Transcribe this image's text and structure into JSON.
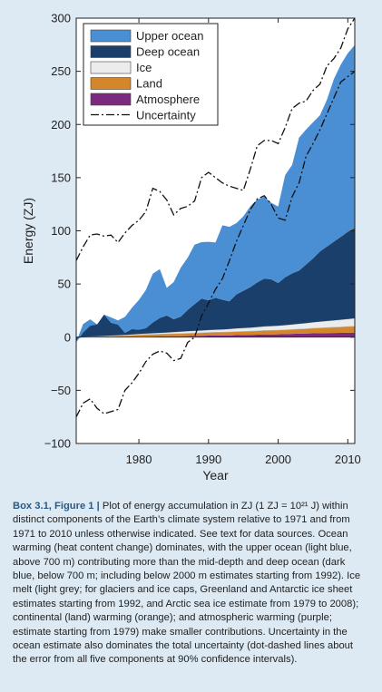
{
  "chart_data": {
    "type": "area",
    "xlabel": "Year",
    "ylabel": "Energy (ZJ)",
    "xlim": [
      1971,
      2011
    ],
    "ylim": [
      -100,
      300
    ],
    "x_ticks": [
      1980,
      1990,
      2000,
      2010
    ],
    "y_ticks": [
      -100,
      -50,
      0,
      50,
      100,
      150,
      200,
      250,
      300
    ],
    "grid": false,
    "legend_position": "top-left",
    "stacked": true,
    "x": [
      1971,
      1972,
      1973,
      1974,
      1975,
      1976,
      1977,
      1978,
      1979,
      1980,
      1981,
      1982,
      1983,
      1984,
      1985,
      1986,
      1987,
      1988,
      1989,
      1990,
      1991,
      1992,
      1993,
      1994,
      1995,
      1996,
      1997,
      1998,
      1999,
      2000,
      2001,
      2002,
      2003,
      2004,
      2005,
      2006,
      2007,
      2008,
      2009,
      2010,
      2011
    ],
    "series": [
      {
        "name": "Atmosphere",
        "color": "#7b2a7d",
        "values": [
          0,
          0,
          0,
          0,
          0,
          0,
          0,
          0,
          0.2,
          0.3,
          0.4,
          0.5,
          0.6,
          0.7,
          0.8,
          0.9,
          1.0,
          1.2,
          1.3,
          1.5,
          1.6,
          1.6,
          1.7,
          1.9,
          2.0,
          2.1,
          2.3,
          2.6,
          2.6,
          2.7,
          2.9,
          3.1,
          3.3,
          3.4,
          3.6,
          3.7,
          3.8,
          3.9,
          4.0,
          4.2,
          4.3
        ]
      },
      {
        "name": "Land",
        "color": "#d4862a",
        "values": [
          0,
          0.2,
          0.4,
          0.6,
          0.8,
          1.0,
          1.2,
          1.4,
          1.6,
          1.8,
          2.0,
          2.1,
          2.2,
          2.3,
          2.4,
          2.5,
          2.6,
          2.7,
          2.8,
          2.9,
          3.0,
          3.1,
          3.2,
          3.3,
          3.4,
          3.5,
          3.6,
          3.7,
          3.8,
          3.9,
          4.0,
          4.1,
          4.3,
          4.5,
          4.8,
          5.0,
          5.2,
          5.4,
          5.6,
          5.8,
          6.0
        ]
      },
      {
        "name": "Ice",
        "color": "#ececec",
        "values": [
          0,
          0.1,
          0.2,
          0.3,
          0.4,
          0.5,
          0.6,
          0.7,
          0.8,
          0.9,
          1.0,
          1.1,
          1.2,
          1.4,
          1.6,
          1.8,
          2.0,
          2.1,
          2.2,
          2.3,
          2.4,
          2.5,
          2.8,
          3.0,
          3.2,
          3.4,
          3.6,
          3.8,
          4.0,
          4.2,
          4.4,
          4.7,
          5.0,
          5.3,
          5.6,
          5.9,
          6.2,
          6.5,
          6.8,
          7.1,
          7.4
        ]
      },
      {
        "name": "Deep ocean",
        "color": "#1b3f6b",
        "values": [
          -5,
          12,
          16,
          11,
          20,
          12,
          10,
          2,
          5,
          4,
          5,
          10,
          14,
          16,
          12,
          14,
          20,
          25,
          30,
          28,
          30,
          28,
          26,
          32,
          35,
          38,
          42,
          45,
          44,
          40,
          45,
          48,
          50,
          55,
          60,
          66,
          70,
          74,
          78,
          82,
          85
        ]
      },
      {
        "name": "Upper ocean",
        "color": "#4a8fd4",
        "values": [
          0,
          -8,
          -6,
          0,
          0,
          5,
          4,
          15,
          20,
          28,
          36,
          46,
          46,
          26,
          35,
          46,
          49,
          56,
          53,
          55,
          52,
          70,
          70,
          67,
          70,
          76,
          78,
          77,
          72,
          72,
          96,
          102,
          125,
          127,
          128,
          128,
          138,
          153,
          162,
          168,
          172
        ]
      }
    ],
    "uncertainty": {
      "name": "Uncertainty",
      "upper": [
        72,
        85,
        96,
        97,
        95,
        96,
        89,
        98,
        105,
        110,
        118,
        140,
        137,
        129,
        115,
        121,
        123,
        128,
        150,
        155,
        150,
        145,
        142,
        140,
        138,
        158,
        180,
        185,
        185,
        182,
        197,
        215,
        220,
        222,
        232,
        238,
        255,
        262,
        272,
        290,
        300
      ],
      "lower": [
        -75,
        -62,
        -58,
        -67,
        -72,
        -70,
        -68,
        -50,
        -43,
        -34,
        -23,
        -16,
        -13,
        -15,
        -22,
        -20,
        -5,
        0,
        20,
        32,
        45,
        55,
        72,
        90,
        105,
        120,
        130,
        133,
        125,
        112,
        110,
        132,
        145,
        170,
        182,
        195,
        210,
        225,
        240,
        245,
        250
      ]
    }
  },
  "caption": {
    "label": "Box 3.1, Figure 1 |",
    "text": "Plot of energy accumulation in ZJ (1 ZJ = 10²¹ J) within distinct components of the Earth’s climate system relative to 1971 and from 1971 to 2010 unless otherwise indicated. See text for data sources. Ocean warming (heat content change) dominates, with the upper ocean (light blue, above 700 m) contributing more than the mid-depth and deep ocean (dark blue, below 700 m; including below 2000 m estimates starting from 1992). Ice melt (light grey; for glaciers and ice caps, Greenland and Antarctic ice sheet estimates starting from 1992, and Arctic sea ice estimate from 1979 to 2008); continental (land) warming (orange); and atmospheric warming (purple; estimate starting from 1979) make smaller contributions. Uncertainty in the ocean estimate also dominates the total uncertainty (dot-dashed lines about the error from all five components at 90% confidence intervals)."
  }
}
